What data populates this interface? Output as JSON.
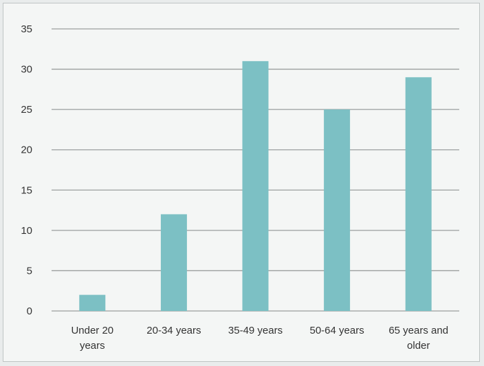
{
  "chart_data": {
    "type": "bar",
    "categories": [
      [
        "Under 20",
        "years"
      ],
      [
        "20-34 years"
      ],
      [
        "35-49 years"
      ],
      [
        "50-64 years"
      ],
      [
        "65 years and",
        "older"
      ]
    ],
    "values": [
      2,
      12,
      31,
      25,
      29
    ],
    "title": "",
    "xlabel": "",
    "ylabel": "",
    "ylim": [
      0,
      35
    ],
    "yticks": [
      0,
      5,
      10,
      15,
      20,
      25,
      30,
      35
    ],
    "grid": true,
    "legend": "none",
    "bar_color": "#7cc0c4",
    "grid_color": "#9a9e9e"
  }
}
